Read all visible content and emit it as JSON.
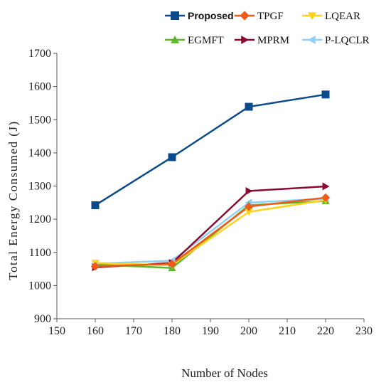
{
  "chart_data": {
    "type": "line",
    "title": "",
    "xlabel": "Number of Nodes",
    "ylabel": "Total Energy Consumed (J)",
    "x": [
      160,
      180,
      200,
      220
    ],
    "xlim": [
      150,
      230
    ],
    "ylim": [
      900,
      1700
    ],
    "xticks": [
      150,
      160,
      170,
      180,
      190,
      200,
      210,
      220,
      230
    ],
    "yticks": [
      900,
      1000,
      1100,
      1200,
      1300,
      1400,
      1500,
      1600,
      1700
    ],
    "grid": false,
    "legend_position": "top-right",
    "series": [
      {
        "name": "Proposed",
        "values": [
          1242,
          1387,
          1539,
          1576
        ],
        "color": "#0b4a8b",
        "marker": "square"
      },
      {
        "name": "TPGF",
        "values": [
          1058,
          1065,
          1238,
          1265
        ],
        "color": "#f05a1a",
        "marker": "diamond"
      },
      {
        "name": "LQEAR",
        "values": [
          1068,
          1062,
          1222,
          1258
        ],
        "color": "#ffd21e",
        "marker": "triangle-down"
      },
      {
        "name": "EGMFT",
        "values": [
          1063,
          1053,
          1242,
          1255
        ],
        "color": "#5cb82a",
        "marker": "triangle-up"
      },
      {
        "name": "MPRM",
        "values": [
          1055,
          1068,
          1285,
          1299
        ],
        "color": "#8b0a32",
        "marker": "triangle-right"
      },
      {
        "name": "P-LQCLR",
        "values": [
          1066,
          1075,
          1250,
          1262
        ],
        "color": "#8fd0f5",
        "marker": "triangle-left"
      }
    ]
  }
}
